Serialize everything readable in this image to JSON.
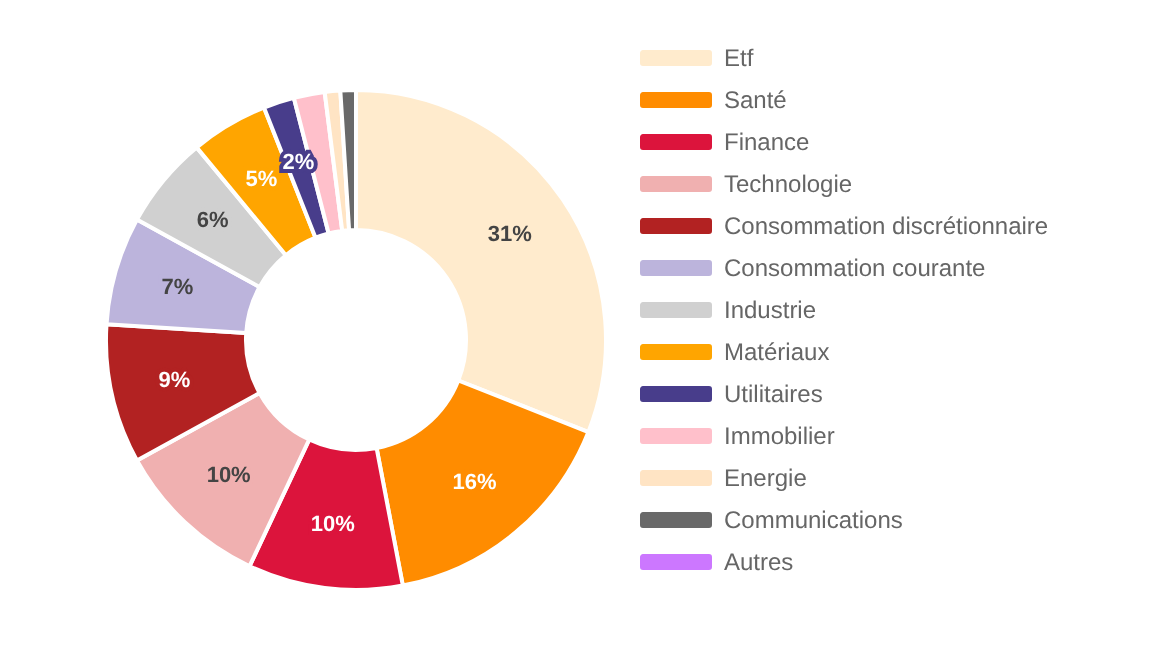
{
  "chart_data": {
    "type": "donut",
    "categories": [
      "Etf",
      "Santé",
      "Finance",
      "Technologie",
      "Consommation discrétionnaire",
      "Consommation courante",
      "Industrie",
      "Matériaux",
      "Utilitaires",
      "Immobilier",
      "Energie",
      "Communications",
      "Autres"
    ],
    "values": [
      31,
      16,
      10,
      10,
      9,
      7,
      6,
      5,
      2,
      2,
      1,
      1,
      0
    ],
    "colors": [
      "#ffebcd",
      "#ff8c00",
      "#dc143c",
      "#f0b0b0",
      "#b22222",
      "#bcb4dc",
      "#d0d0d0",
      "#ffa500",
      "#483d8b",
      "#ffc0cb",
      "#ffe4c4",
      "#696969",
      "#cc77ff"
    ],
    "value_labels": [
      "31%",
      "16%",
      "10%",
      "10%",
      "9%",
      "7%",
      "6%",
      "5%",
      "2%",
      null,
      null,
      null,
      null
    ],
    "legend": "right"
  }
}
